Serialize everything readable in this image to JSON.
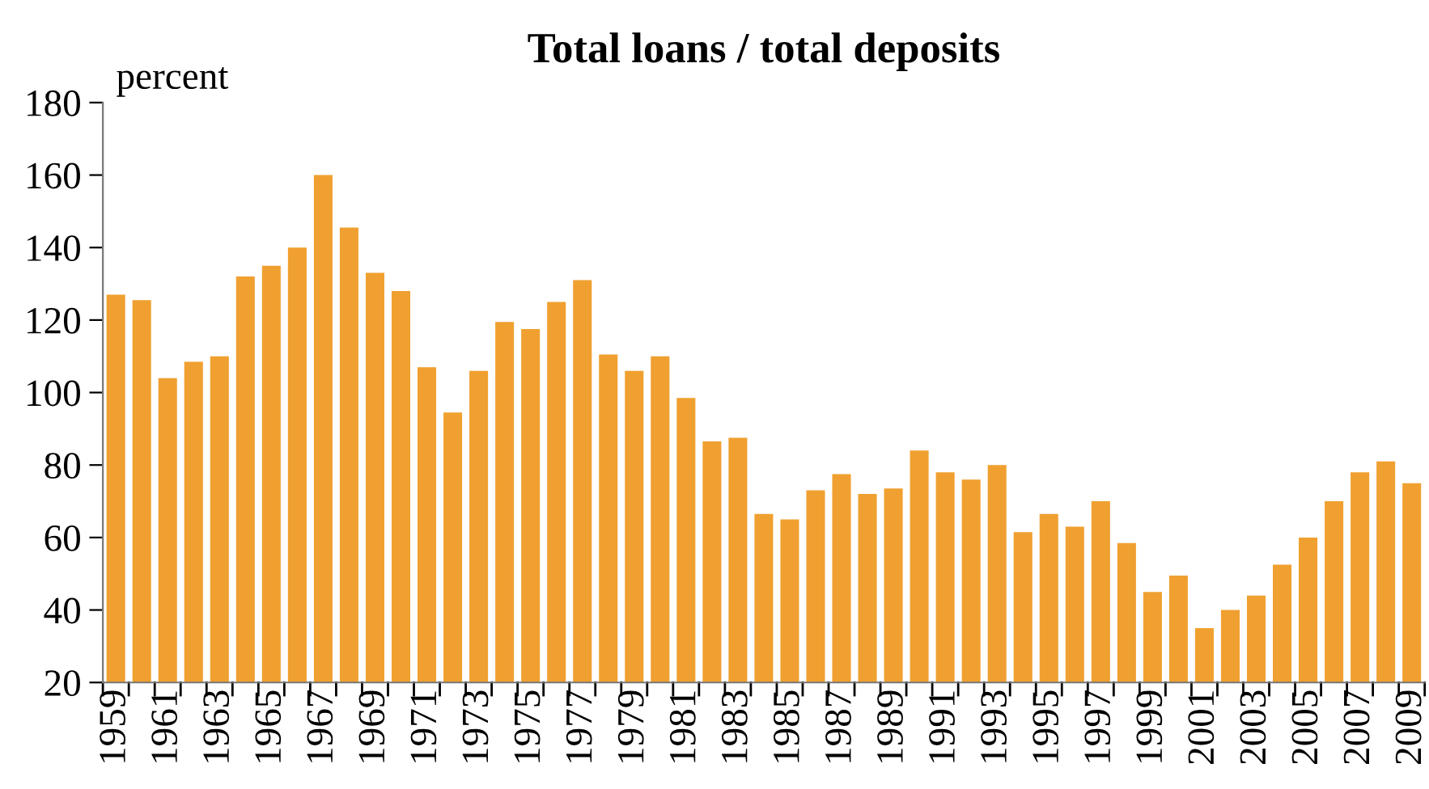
{
  "chart_data": {
    "type": "bar",
    "title": "Total loans / total deposits",
    "ylabel": "percent",
    "categories": [
      "1959",
      null,
      "1961",
      null,
      "1963",
      null,
      "1965",
      null,
      "1967",
      null,
      "1969",
      null,
      "1971",
      null,
      "1973",
      null,
      "1975",
      null,
      "1977",
      null,
      "1979",
      null,
      "1981",
      null,
      "1983",
      null,
      "1985",
      null,
      "1987",
      null,
      "1989",
      null,
      "1991",
      null,
      "1993",
      null,
      "1995",
      null,
      "1997",
      null,
      "1999",
      null,
      "2001",
      null,
      "2003",
      null,
      "2005",
      null,
      "2007",
      null,
      "2009"
    ],
    "values": [
      127,
      125.5,
      104,
      108.5,
      110,
      132,
      135,
      140,
      160,
      145.5,
      133,
      128,
      107,
      94.5,
      106,
      119.5,
      117.5,
      125,
      131,
      110.5,
      106,
      110,
      98.5,
      86.5,
      87.5,
      66.5,
      65,
      73,
      77.5,
      72,
      73.5,
      84,
      78,
      76,
      80,
      61.5,
      66.5,
      63,
      70,
      58.5,
      45,
      49.5,
      35,
      40,
      44,
      52.5,
      60,
      70,
      78,
      81,
      75
    ],
    "color": "#f0a030",
    "ylim": [
      20,
      180
    ],
    "yticks": [
      20,
      40,
      60,
      80,
      100,
      120,
      140,
      160,
      180
    ],
    "grid": false,
    "legend": false
  }
}
